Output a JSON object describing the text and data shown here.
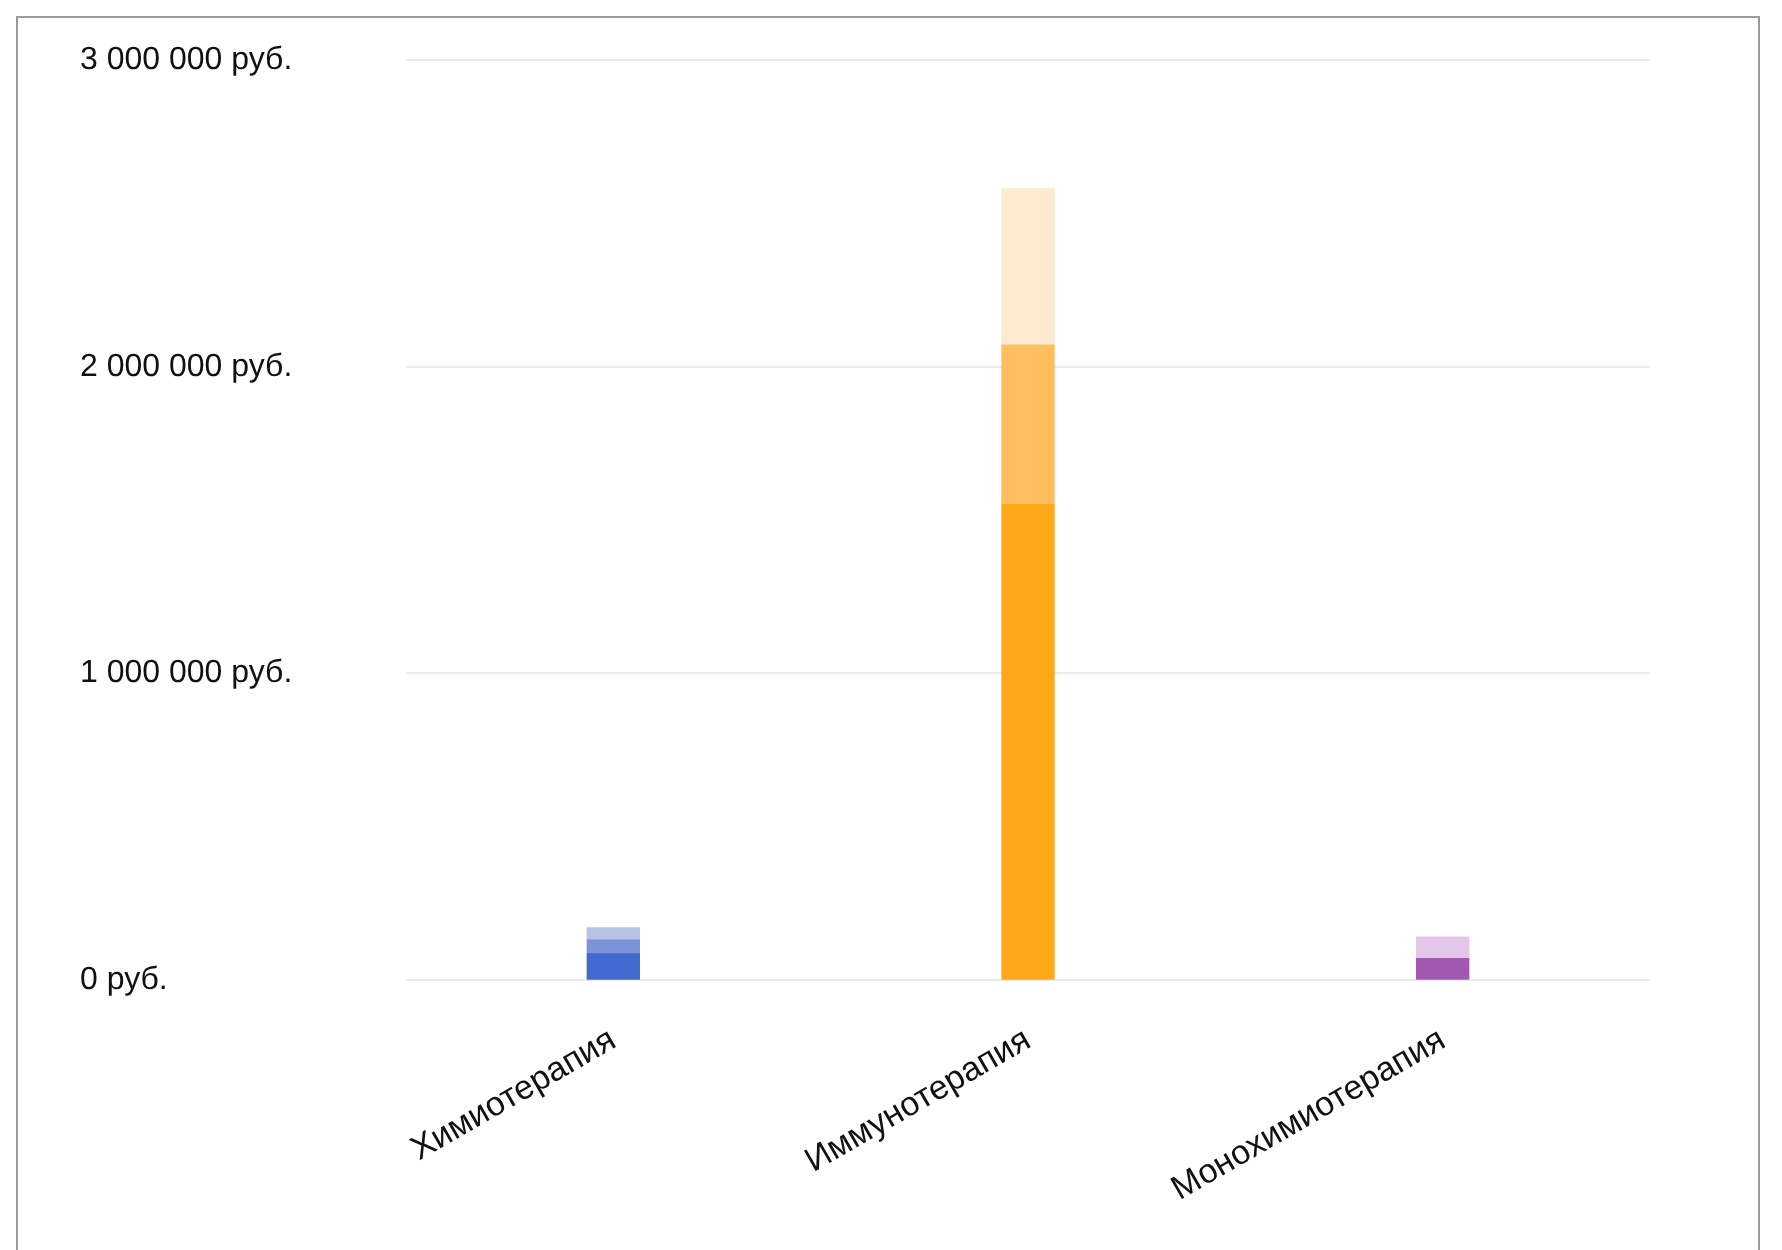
{
  "chart_data": {
    "type": "bar",
    "stacked": true,
    "categories": [
      "Химиотерапия",
      "Иммунотерапия",
      "Монохимиотерапия"
    ],
    "series": [
      {
        "colors": [
          "#4169cf",
          "#ffa81a",
          "#a358b0"
        ],
        "values": [
          85000,
          1550000,
          70000
        ]
      },
      {
        "colors": [
          "#7a93d9",
          "#ffbf60",
          "#e3c6ea"
        ],
        "values": [
          45000,
          520000,
          70000
        ]
      },
      {
        "colors": [
          "#b8c3e6",
          "#ffe9d0",
          null
        ],
        "values": [
          40000,
          510000,
          null
        ]
      }
    ],
    "ylim": [
      0,
      3000000
    ],
    "yticks": [
      {
        "value": 0,
        "label": "0 руб."
      },
      {
        "value": 1000000,
        "label": "1 000 000 руб."
      },
      {
        "value": 2000000,
        "label": "2 000 000 руб."
      },
      {
        "value": 3000000,
        "label": "3 000 000 руб."
      }
    ],
    "grid": "y",
    "legend": false
  }
}
